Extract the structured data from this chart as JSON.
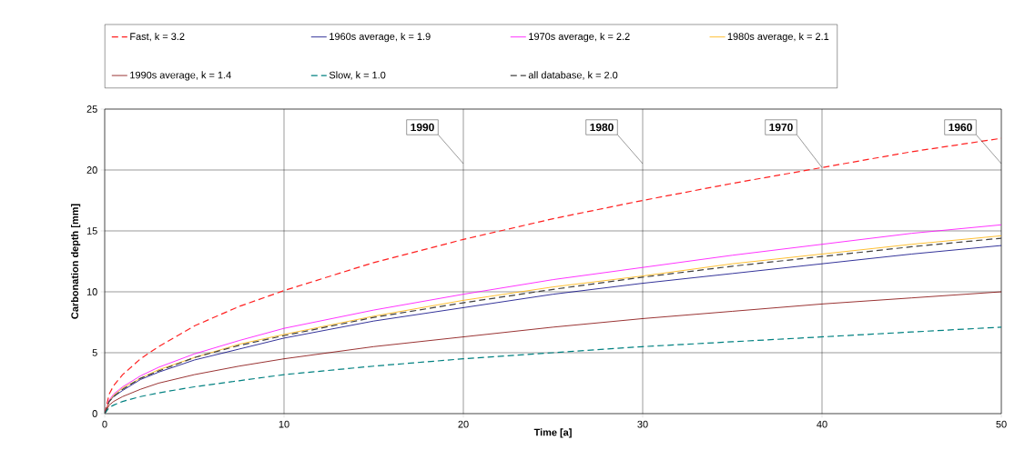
{
  "chart_data": {
    "type": "line",
    "xlabel": "Time [a]",
    "ylabel": "Carbonation depth [mm]",
    "xlim": [
      0,
      50
    ],
    "ylim": [
      0,
      25
    ],
    "xticks": [
      0,
      10,
      20,
      30,
      40,
      50
    ],
    "yticks": [
      0,
      5,
      10,
      15,
      20,
      25
    ],
    "grid": true,
    "legend": "top",
    "x": [
      0,
      0.25,
      0.5,
      1,
      2,
      3,
      5,
      7.5,
      10,
      15,
      20,
      25,
      30,
      35,
      40,
      45,
      50
    ],
    "series": [
      {
        "name": "Fast, k = 3.2",
        "color": "#ff2020",
        "line_style": "dashed",
        "values": [
          0,
          1.6,
          2.3,
          3.2,
          4.5,
          5.5,
          7.2,
          8.8,
          10.1,
          12.4,
          14.3,
          16,
          17.5,
          18.9,
          20.2,
          21.5,
          22.6
        ]
      },
      {
        "name": "1960s average, k = 1.9",
        "color": "#000080",
        "line_style": "solid",
        "values": [
          0,
          1.0,
          1.4,
          1.9,
          2.8,
          3.4,
          4.4,
          5.3,
          6.2,
          7.6,
          8.7,
          9.8,
          10.7,
          11.5,
          12.3,
          13.1,
          13.8
        ]
      },
      {
        "name": "1970s average, k = 2.2",
        "color": "#ff00ff",
        "line_style": "solid",
        "values": [
          0,
          1.1,
          1.6,
          2.2,
          3.1,
          3.8,
          4.9,
          6.0,
          7.0,
          8.5,
          9.8,
          11.0,
          12.0,
          13.0,
          13.9,
          14.8,
          15.5
        ]
      },
      {
        "name": "1980s average, k = 2.1",
        "color": "#ffb000",
        "line_style": "solid",
        "values": [
          0,
          1.0,
          1.5,
          2.1,
          2.9,
          3.6,
          4.6,
          5.7,
          6.5,
          8.0,
          9.3,
          10.4,
          11.3,
          12.3,
          13.1,
          13.9,
          14.6
        ]
      },
      {
        "name": "1990s average, k = 1.4",
        "color": "#800000",
        "line_style": "solid",
        "values": [
          0,
          0.7,
          1.0,
          1.4,
          2.0,
          2.5,
          3.2,
          3.9,
          4.5,
          5.5,
          6.3,
          7.1,
          7.8,
          8.4,
          9.0,
          9.5,
          10.0
        ]
      },
      {
        "name": "Slow, k = 1.0",
        "color": "#008080",
        "line_style": "dashed",
        "values": [
          0,
          0.5,
          0.7,
          1.0,
          1.4,
          1.7,
          2.2,
          2.7,
          3.2,
          3.9,
          4.5,
          5.0,
          5.5,
          5.9,
          6.3,
          6.7,
          7.1
        ]
      },
      {
        "name": "all database, k = 2.0",
        "color": "#404040",
        "line_style": "dashed",
        "values": [
          0,
          1.0,
          1.4,
          2.0,
          2.9,
          3.5,
          4.6,
          5.6,
          6.4,
          7.9,
          9.1,
          10.2,
          11.2,
          12.1,
          12.9,
          13.7,
          14.4
        ]
      }
    ],
    "annotations": [
      "1990",
      "1980",
      {
        "text": "1970",
        "x": 40,
        "y": 20.2
      },
      "1960"
    ]
  }
}
